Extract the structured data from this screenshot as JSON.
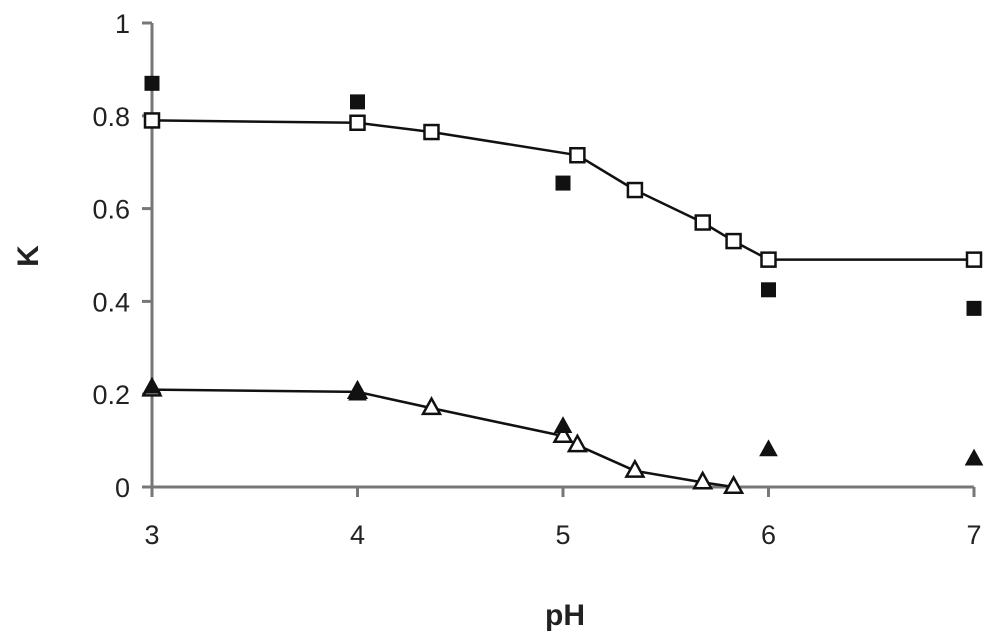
{
  "chart_data": {
    "type": "scatter",
    "title": "",
    "xlabel": "pH",
    "ylabel": "K",
    "xlim": [
      3,
      7
    ],
    "ylim": [
      0,
      1
    ],
    "x_ticks": [
      "3",
      "4",
      "5",
      "6",
      "7"
    ],
    "y_ticks": [
      "0",
      "0.2",
      "0.4",
      "0.6",
      "0.8",
      "1"
    ],
    "grid": false,
    "legend": "none",
    "series": [
      {
        "marker": "square-open",
        "line": true,
        "color": "#111111",
        "points": [
          {
            "x": 3.0,
            "y": 0.79
          },
          {
            "x": 4.0,
            "y": 0.785
          },
          {
            "x": 4.36,
            "y": 0.765
          },
          {
            "x": 5.07,
            "y": 0.715
          },
          {
            "x": 5.35,
            "y": 0.64
          },
          {
            "x": 5.68,
            "y": 0.57
          },
          {
            "x": 5.83,
            "y": 0.53
          },
          {
            "x": 6.0,
            "y": 0.49
          },
          {
            "x": 7.0,
            "y": 0.49
          }
        ]
      },
      {
        "marker": "square-filled",
        "line": false,
        "color": "#111111",
        "points": [
          {
            "x": 3.0,
            "y": 0.87
          },
          {
            "x": 4.0,
            "y": 0.83
          },
          {
            "x": 5.0,
            "y": 0.655
          },
          {
            "x": 6.0,
            "y": 0.425
          },
          {
            "x": 7.0,
            "y": 0.385
          }
        ]
      },
      {
        "marker": "triangle-open",
        "line": true,
        "color": "#111111",
        "points": [
          {
            "x": 3.0,
            "y": 0.21
          },
          {
            "x": 4.0,
            "y": 0.205
          },
          {
            "x": 4.36,
            "y": 0.17
          },
          {
            "x": 5.0,
            "y": 0.11
          },
          {
            "x": 5.07,
            "y": 0.09
          },
          {
            "x": 5.35,
            "y": 0.035
          },
          {
            "x": 5.68,
            "y": 0.01
          },
          {
            "x": 5.83,
            "y": 0.0
          }
        ]
      },
      {
        "marker": "triangle-filled",
        "line": false,
        "color": "#111111",
        "points": [
          {
            "x": 3.0,
            "y": 0.215
          },
          {
            "x": 4.0,
            "y": 0.2
          },
          {
            "x": 5.0,
            "y": 0.13
          },
          {
            "x": 6.0,
            "y": 0.08
          },
          {
            "x": 7.0,
            "y": 0.06
          }
        ]
      }
    ]
  }
}
